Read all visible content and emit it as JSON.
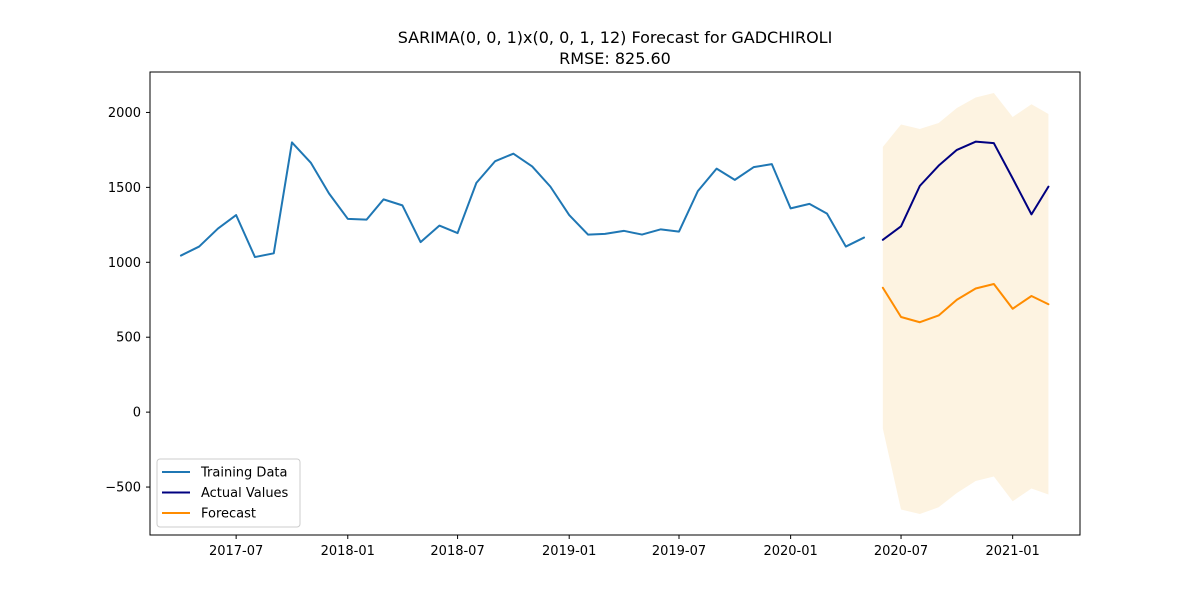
{
  "chart_data": {
    "type": "line",
    "title": "SARIMA(0, 0, 1)x(0, 0, 1, 12) Forecast for GADCHIROLI",
    "subtitle": "RMSE: 825.60",
    "xlabel": "",
    "ylabel": "",
    "ylim": [
      -820,
      2270
    ],
    "xlim": [
      "2017-02-09",
      "2021-04-22"
    ],
    "grid": false,
    "legend_position": "lower-left",
    "x_ticks": [
      "2017-07",
      "2018-01",
      "2018-07",
      "2019-01",
      "2019-07",
      "2020-01",
      "2020-07",
      "2021-01"
    ],
    "y_ticks": [
      -500,
      0,
      500,
      1000,
      1500,
      2000
    ],
    "series": [
      {
        "name": "Training Data",
        "color": "#1f77b4",
        "x": [
          "2017-04",
          "2017-05",
          "2017-06",
          "2017-07",
          "2017-08",
          "2017-09",
          "2017-10",
          "2017-11",
          "2017-12",
          "2018-01",
          "2018-02",
          "2018-03",
          "2018-04",
          "2018-05",
          "2018-06",
          "2018-07",
          "2018-08",
          "2018-09",
          "2018-10",
          "2018-11",
          "2018-12",
          "2019-01",
          "2019-02",
          "2019-03",
          "2019-04",
          "2019-05",
          "2019-06",
          "2019-07",
          "2019-08",
          "2019-09",
          "2019-10",
          "2019-11",
          "2019-12",
          "2020-01",
          "2020-02",
          "2020-03",
          "2020-04",
          "2020-05"
        ],
        "values": [
          1045,
          1105,
          1225,
          1315,
          1035,
          1060,
          1800,
          1665,
          1460,
          1290,
          1285,
          1420,
          1380,
          1135,
          1245,
          1195,
          1530,
          1675,
          1725,
          1640,
          1505,
          1315,
          1185,
          1190,
          1210,
          1185,
          1220,
          1205,
          1475,
          1625,
          1550,
          1635,
          1655,
          1360,
          1390,
          1325,
          1105,
          1165
        ]
      },
      {
        "name": "Actual Values",
        "color": "#000080",
        "x": [
          "2020-06",
          "2020-07",
          "2020-08",
          "2020-09",
          "2020-10",
          "2020-11",
          "2020-12",
          "2021-01",
          "2021-02",
          "2021-03"
        ],
        "values": [
          1150,
          1240,
          1510,
          1645,
          1750,
          1805,
          1795,
          1560,
          1320,
          1505
        ]
      },
      {
        "name": "Forecast",
        "color": "#ff8c00",
        "x": [
          "2020-06",
          "2020-07",
          "2020-08",
          "2020-09",
          "2020-10",
          "2020-11",
          "2020-12",
          "2021-01",
          "2021-02",
          "2021-03"
        ],
        "values": [
          830,
          635,
          600,
          645,
          750,
          825,
          855,
          690,
          775,
          720
        ]
      }
    ],
    "confidence_band": {
      "color": "#fdf3e1",
      "x": [
        "2020-06",
        "2020-07",
        "2020-08",
        "2020-09",
        "2020-10",
        "2020-11",
        "2020-12",
        "2021-01",
        "2021-02",
        "2021-03"
      ],
      "upper": [
        1770,
        1920,
        1890,
        1930,
        2030,
        2100,
        2130,
        1970,
        2055,
        1990
      ],
      "lower": [
        -110,
        -650,
        -680,
        -635,
        -540,
        -460,
        -430,
        -595,
        -510,
        -550
      ]
    }
  }
}
